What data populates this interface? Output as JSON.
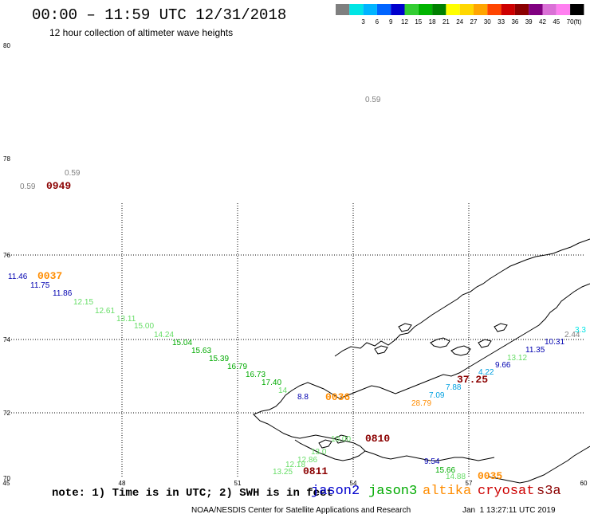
{
  "header": {
    "title": "00:00 – 11:59 UTC 12/31/2018",
    "subtitle": "12 hour collection of altimeter wave heights"
  },
  "color_scale": {
    "bins": [
      {
        "label": "",
        "color": "#7f7f7f"
      },
      {
        "label": "3",
        "color": "#00e5e5"
      },
      {
        "label": "6",
        "color": "#00b4ff"
      },
      {
        "label": "9",
        "color": "#0064ff"
      },
      {
        "label": "12",
        "color": "#0000cd"
      },
      {
        "label": "15",
        "color": "#32cd32"
      },
      {
        "label": "18",
        "color": "#00b400"
      },
      {
        "label": "21",
        "color": "#008000"
      },
      {
        "label": "24",
        "color": "#ffff00"
      },
      {
        "label": "27",
        "color": "#ffd700"
      },
      {
        "label": "30",
        "color": "#ffa500"
      },
      {
        "label": "33",
        "color": "#ff4500"
      },
      {
        "label": "36",
        "color": "#cd0000"
      },
      {
        "label": "39",
        "color": "#8b0000"
      },
      {
        "label": "42",
        "color": "#800080"
      },
      {
        "label": "45",
        "color": "#da70d6"
      },
      {
        "label": "70",
        "color": "#ff7ff0"
      },
      {
        "label": "",
        "color": "#000000"
      }
    ],
    "unit": "(ft)"
  },
  "axes": {
    "lat_ticks": [
      "80",
      "78",
      "76",
      "74",
      "72",
      "70"
    ],
    "lon_ticks": [
      "45",
      "48",
      "51",
      "54",
      "57",
      "60"
    ]
  },
  "observations": [
    {
      "text": "0.59",
      "color": "#808080"
    },
    {
      "text": "0.59",
      "color": "#808080"
    },
    {
      "text": "0.59",
      "color": "#808080"
    },
    {
      "text": "0949",
      "color": "#8b0000"
    },
    {
      "text": "11.46",
      "color": "#0000b0"
    },
    {
      "text": "0037",
      "color": "#ff8c00"
    },
    {
      "text": "11.75",
      "color": "#0000b0"
    },
    {
      "text": "11.86",
      "color": "#0000b0"
    },
    {
      "text": "12.15",
      "color": "#66dd66"
    },
    {
      "text": "12.61",
      "color": "#66dd66"
    },
    {
      "text": "13.11",
      "color": "#66dd66"
    },
    {
      "text": "15.00",
      "color": "#66dd66"
    },
    {
      "text": "14.24",
      "color": "#66dd66"
    },
    {
      "text": "15.04",
      "color": "#00aa00"
    },
    {
      "text": "15.63",
      "color": "#00aa00"
    },
    {
      "text": "15.39",
      "color": "#00aa00"
    },
    {
      "text": "16.79",
      "color": "#00aa00"
    },
    {
      "text": "16.73",
      "color": "#00aa00"
    },
    {
      "text": "17.40",
      "color": "#00aa00"
    },
    {
      "text": "14.",
      "color": "#66dd66"
    },
    {
      "text": "8.8",
      "color": "#0000b0"
    },
    {
      "text": "0036",
      "color": "#ff8c00"
    },
    {
      "text": "28.79",
      "color": "#ff8c00"
    },
    {
      "text": "7.09",
      "color": "#00a0e0"
    },
    {
      "text": "7.88",
      "color": "#00a0e0"
    },
    {
      "text": "37.25",
      "color": "#8b0000"
    },
    {
      "text": "4.22",
      "color": "#00a0e0"
    },
    {
      "text": "9.66",
      "color": "#0000b0"
    },
    {
      "text": "13.12",
      "color": "#66dd66"
    },
    {
      "text": "11.35",
      "color": "#0000b0"
    },
    {
      "text": "10.31",
      "color": "#0000b0"
    },
    {
      "text": "2.44",
      "color": "#808080"
    },
    {
      "text": "3.3",
      "color": "#00e5e5"
    },
    {
      "text": "0810",
      "color": "#8b0000"
    },
    {
      "text": "10.00",
      "color": "#66dd66"
    },
    {
      "text": "13.0",
      "color": "#66dd66"
    },
    {
      "text": "12.86",
      "color": "#66dd66"
    },
    {
      "text": "12.18",
      "color": "#66dd66"
    },
    {
      "text": "13.25",
      "color": "#66dd66"
    },
    {
      "text": "0811",
      "color": "#8b0000"
    },
    {
      "text": "9.54",
      "color": "#0000b0"
    },
    {
      "text": "15.66",
      "color": "#00aa00"
    },
    {
      "text": "14.88",
      "color": "#66dd66"
    },
    {
      "text": "0035",
      "color": "#ff8c00"
    }
  ],
  "footer": {
    "note": "note: 1) Time is in UTC; 2) SWH is in feet",
    "legend": [
      {
        "text": "jason2",
        "color": "#0000cd"
      },
      {
        "text": "jason3",
        "color": "#00aa00"
      },
      {
        "text": "altika",
        "color": "#ff8c00"
      },
      {
        "text": "cryosat",
        "color": "#cd0000"
      },
      {
        "text": "s3a",
        "color": "#8b0000"
      }
    ],
    "credit": "NOAA/NESDIS Center for Satellite Applications and Research",
    "timestamp": "Jan  1 13:27:11 UTC 2019"
  }
}
